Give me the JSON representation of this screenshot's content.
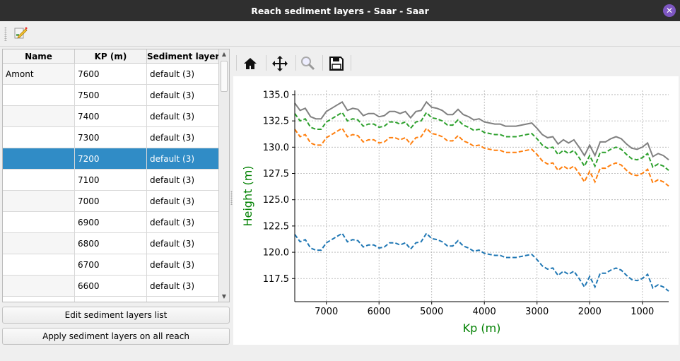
{
  "window": {
    "title": "Reach sediment layers - Saar - Saar",
    "close_icon": "close-icon"
  },
  "toolbar": {
    "edit_icon": "edit-document-icon"
  },
  "table": {
    "headers": [
      "Name",
      "KP (m)",
      "Sediment layers"
    ],
    "rows": [
      {
        "name": "Amont",
        "kp": "7600",
        "layers": "default (3)"
      },
      {
        "name": "",
        "kp": "7500",
        "layers": "default (3)"
      },
      {
        "name": "",
        "kp": "7400",
        "layers": "default (3)"
      },
      {
        "name": "",
        "kp": "7300",
        "layers": "default (3)"
      },
      {
        "name": "",
        "kp": "7200",
        "layers": "default (3)",
        "selected": true
      },
      {
        "name": "",
        "kp": "7100",
        "layers": "default (3)"
      },
      {
        "name": "",
        "kp": "7000",
        "layers": "default (3)"
      },
      {
        "name": "",
        "kp": "6900",
        "layers": "default (3)"
      },
      {
        "name": "",
        "kp": "6800",
        "layers": "default (3)"
      },
      {
        "name": "",
        "kp": "6700",
        "layers": "default (3)"
      },
      {
        "name": "",
        "kp": "6600",
        "layers": "default (3)"
      },
      {
        "name": "",
        "kp": "",
        "layers": ""
      }
    ],
    "selection_color": "#308cc6"
  },
  "buttons": {
    "edit": "Edit sediment layers list",
    "apply": "Apply sediment layers on all reach"
  },
  "plot_toolbar": {
    "icons": [
      "home-icon",
      "pan-icon",
      "zoom-icon",
      "save-icon"
    ]
  },
  "chart_data": {
    "type": "line",
    "xlabel": "Kp (m)",
    "ylabel": "Height (m)",
    "label_color": "#008000",
    "xlim": [
      7600,
      500
    ],
    "ylim": [
      115.3,
      135.4
    ],
    "xticks": [
      7000,
      6000,
      5000,
      4000,
      3000,
      2000,
      1000
    ],
    "yticks": [
      "117.5",
      "120.0",
      "122.5",
      "125.0",
      "127.5",
      "130.0",
      "132.5",
      "135.0"
    ],
    "grid": true,
    "x": [
      7600,
      7500,
      7400,
      7300,
      7200,
      7100,
      7000,
      6900,
      6800,
      6700,
      6600,
      6500,
      6400,
      6300,
      6200,
      6100,
      6000,
      5900,
      5800,
      5700,
      5600,
      5500,
      5400,
      5300,
      5200,
      5100,
      5000,
      4900,
      4800,
      4700,
      4600,
      4500,
      4400,
      4300,
      4200,
      4100,
      4000,
      3900,
      3800,
      3700,
      3600,
      3500,
      3400,
      3300,
      3200,
      3100,
      3000,
      2900,
      2800,
      2700,
      2600,
      2500,
      2400,
      2300,
      2200,
      2100,
      2000,
      1900,
      1800,
      1700,
      1600,
      1500,
      1400,
      1300,
      1200,
      1100,
      1000,
      900,
      800,
      700,
      600,
      500
    ],
    "series": [
      {
        "color": "#808080",
        "style": "solid",
        "values": [
          134.2,
          133.5,
          133.7,
          132.9,
          132.7,
          132.7,
          133.4,
          133.7,
          134.0,
          134.3,
          133.5,
          133.7,
          133.6,
          133.0,
          133.2,
          133.2,
          132.9,
          133.0,
          133.4,
          133.4,
          133.2,
          133.4,
          132.8,
          133.4,
          133.5,
          134.3,
          133.8,
          133.7,
          133.5,
          133.1,
          133.1,
          133.6,
          133.1,
          132.9,
          132.6,
          132.7,
          132.4,
          132.3,
          132.2,
          132.2,
          132.0,
          132.0,
          132.0,
          132.1,
          132.2,
          132.3,
          131.8,
          131.2,
          130.9,
          131.0,
          130.3,
          130.7,
          130.4,
          130.7,
          130.0,
          129.2,
          130.2,
          129.2,
          130.5,
          130.5,
          130.8,
          131.0,
          130.8,
          130.3,
          129.9,
          129.8,
          130.0,
          130.4,
          129.1,
          129.4,
          129.2,
          128.8
        ]
      },
      {
        "color": "#2ca02c",
        "style": "dashed",
        "values": [
          133.2,
          132.5,
          132.7,
          131.9,
          131.7,
          131.7,
          132.4,
          132.7,
          133.0,
          133.3,
          132.5,
          132.7,
          132.6,
          132.0,
          132.2,
          132.2,
          131.9,
          132.0,
          132.4,
          132.4,
          132.2,
          132.4,
          131.8,
          132.4,
          132.5,
          133.3,
          132.8,
          132.7,
          132.5,
          132.1,
          132.1,
          132.6,
          132.1,
          131.9,
          131.6,
          131.7,
          131.4,
          131.3,
          131.2,
          131.2,
          131.0,
          131.0,
          131.0,
          131.1,
          131.2,
          131.3,
          130.8,
          130.2,
          129.9,
          130.0,
          129.3,
          129.7,
          129.4,
          129.7,
          129.0,
          128.2,
          129.2,
          128.2,
          129.5,
          129.5,
          129.8,
          130.0,
          129.8,
          129.3,
          128.9,
          128.8,
          129.0,
          129.4,
          128.1,
          128.4,
          128.2,
          127.8
        ]
      },
      {
        "color": "#ff7f0e",
        "style": "dashed",
        "values": [
          131.7,
          131.0,
          131.2,
          130.4,
          130.2,
          130.2,
          130.9,
          131.2,
          131.5,
          131.8,
          131.0,
          131.2,
          131.1,
          130.5,
          130.7,
          130.7,
          130.4,
          130.5,
          130.9,
          130.9,
          130.7,
          130.9,
          130.3,
          130.9,
          131.0,
          131.8,
          131.3,
          131.2,
          131.0,
          130.6,
          130.6,
          131.1,
          130.6,
          130.4,
          130.1,
          130.2,
          129.9,
          129.8,
          129.7,
          129.7,
          129.5,
          129.5,
          129.5,
          129.6,
          129.7,
          129.8,
          129.3,
          128.7,
          128.4,
          128.5,
          127.8,
          128.2,
          127.9,
          128.2,
          127.5,
          126.7,
          127.7,
          126.7,
          128.0,
          128.0,
          128.3,
          128.5,
          128.3,
          127.8,
          127.4,
          127.3,
          127.5,
          127.9,
          126.6,
          126.9,
          126.7,
          126.3
        ]
      },
      {
        "color": "#1f77b4",
        "style": "dashed",
        "values": [
          121.7,
          121.0,
          121.2,
          120.4,
          120.2,
          120.2,
          120.9,
          121.2,
          121.5,
          121.8,
          121.0,
          121.2,
          121.1,
          120.5,
          120.7,
          120.7,
          120.4,
          120.5,
          120.9,
          120.9,
          120.7,
          120.9,
          120.3,
          120.9,
          121.0,
          121.8,
          121.3,
          121.2,
          121.0,
          120.6,
          120.6,
          121.1,
          120.6,
          120.4,
          120.1,
          120.2,
          119.9,
          119.8,
          119.7,
          119.7,
          119.5,
          119.5,
          119.5,
          119.6,
          119.7,
          119.8,
          119.3,
          118.7,
          118.4,
          118.5,
          117.8,
          118.2,
          117.9,
          118.2,
          117.5,
          116.7,
          117.7,
          116.7,
          118.0,
          118.0,
          118.3,
          118.5,
          118.3,
          117.8,
          117.4,
          117.3,
          117.5,
          117.9,
          116.6,
          116.9,
          116.7,
          116.3
        ]
      }
    ]
  }
}
